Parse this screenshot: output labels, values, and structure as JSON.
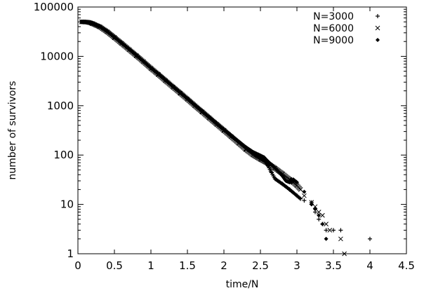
{
  "chart_data": {
    "type": "scatter",
    "title": "",
    "xlabel": "time/N",
    "ylabel": "number of survivors",
    "xlim": [
      0,
      4.5
    ],
    "ylim": [
      1,
      100000
    ],
    "y_scale": "log",
    "grid": false,
    "legend_position": "top-right",
    "x_ticks": [
      0,
      0.5,
      1,
      1.5,
      2,
      2.5,
      3,
      3.5,
      4,
      4.5
    ],
    "x_tick_labels": [
      "0",
      "0.5",
      "1",
      "1.5",
      "2",
      "2.5",
      "3",
      "3.5",
      "4",
      "4.5"
    ],
    "y_ticks": [
      1,
      10,
      100,
      1000,
      10000,
      100000
    ],
    "y_tick_labels": [
      "1",
      "10",
      "100",
      "1000",
      "10000",
      "100000"
    ],
    "series": [
      {
        "name": "N=3000",
        "marker": "plus",
        "points": [
          [
            0.05,
            50000
          ],
          [
            0.1,
            49800
          ],
          [
            0.15,
            49000
          ],
          [
            0.2,
            46500
          ],
          [
            0.3,
            40000
          ],
          [
            0.4,
            32000
          ],
          [
            0.5,
            24500
          ],
          [
            0.6,
            18500
          ],
          [
            0.7,
            14000
          ],
          [
            0.8,
            10500
          ],
          [
            0.9,
            7800
          ],
          [
            1.0,
            5800
          ],
          [
            1.1,
            4400
          ],
          [
            1.2,
            3300
          ],
          [
            1.3,
            2450
          ],
          [
            1.4,
            1850
          ],
          [
            1.5,
            1380
          ],
          [
            1.6,
            1030
          ],
          [
            1.7,
            770
          ],
          [
            1.8,
            580
          ],
          [
            1.9,
            430
          ],
          [
            2.0,
            325
          ],
          [
            2.1,
            245
          ],
          [
            2.2,
            185
          ],
          [
            2.3,
            140
          ],
          [
            2.4,
            110
          ],
          [
            2.5,
            92
          ],
          [
            2.55,
            80
          ],
          [
            2.6,
            62
          ],
          [
            2.65,
            45
          ],
          [
            2.7,
            33
          ],
          [
            2.8,
            26
          ],
          [
            2.9,
            20
          ],
          [
            3.0,
            15
          ],
          [
            3.05,
            13
          ],
          [
            3.1,
            12
          ],
          [
            3.2,
            11
          ],
          [
            3.25,
            7
          ],
          [
            3.3,
            5
          ],
          [
            3.35,
            4
          ],
          [
            3.4,
            3
          ],
          [
            3.5,
            3
          ],
          [
            3.6,
            3
          ],
          [
            4.0,
            2
          ]
        ]
      },
      {
        "name": "N=6000",
        "marker": "cross",
        "points": [
          [
            0.05,
            50000
          ],
          [
            0.1,
            49700
          ],
          [
            0.15,
            48800
          ],
          [
            0.2,
            46000
          ],
          [
            0.3,
            39500
          ],
          [
            0.4,
            31500
          ],
          [
            0.5,
            24000
          ],
          [
            0.6,
            18200
          ],
          [
            0.7,
            13700
          ],
          [
            0.8,
            10300
          ],
          [
            0.9,
            7700
          ],
          [
            1.0,
            5700
          ],
          [
            1.1,
            4300
          ],
          [
            1.2,
            3200
          ],
          [
            1.3,
            2400
          ],
          [
            1.4,
            1800
          ],
          [
            1.5,
            1350
          ],
          [
            1.6,
            1000
          ],
          [
            1.7,
            750
          ],
          [
            1.8,
            560
          ],
          [
            1.9,
            420
          ],
          [
            2.0,
            315
          ],
          [
            2.1,
            235
          ],
          [
            2.2,
            175
          ],
          [
            2.3,
            130
          ],
          [
            2.4,
            100
          ],
          [
            2.5,
            82
          ],
          [
            2.6,
            68
          ],
          [
            2.7,
            54
          ],
          [
            2.8,
            42
          ],
          [
            2.9,
            32
          ],
          [
            2.95,
            28
          ],
          [
            3.0,
            24
          ],
          [
            3.05,
            20
          ],
          [
            3.1,
            15
          ],
          [
            3.2,
            11
          ],
          [
            3.25,
            9
          ],
          [
            3.3,
            7
          ],
          [
            3.35,
            6
          ],
          [
            3.4,
            4
          ],
          [
            3.45,
            3
          ],
          [
            3.6,
            2
          ],
          [
            3.65,
            1
          ]
        ]
      },
      {
        "name": "N=9000",
        "marker": "diamond",
        "points": [
          [
            0.05,
            50000
          ],
          [
            0.1,
            49900
          ],
          [
            0.15,
            49200
          ],
          [
            0.2,
            46800
          ],
          [
            0.3,
            40500
          ],
          [
            0.4,
            32300
          ],
          [
            0.5,
            24700
          ],
          [
            0.6,
            18700
          ],
          [
            0.7,
            14100
          ],
          [
            0.8,
            10600
          ],
          [
            0.9,
            7900
          ],
          [
            1.0,
            5850
          ],
          [
            1.1,
            4450
          ],
          [
            1.2,
            3350
          ],
          [
            1.3,
            2480
          ],
          [
            1.4,
            1870
          ],
          [
            1.5,
            1400
          ],
          [
            1.6,
            1040
          ],
          [
            1.7,
            780
          ],
          [
            1.8,
            590
          ],
          [
            1.9,
            440
          ],
          [
            2.0,
            330
          ],
          [
            2.1,
            250
          ],
          [
            2.2,
            190
          ],
          [
            2.3,
            145
          ],
          [
            2.4,
            115
          ],
          [
            2.5,
            98
          ],
          [
            2.55,
            90
          ],
          [
            2.6,
            75
          ],
          [
            2.7,
            55
          ],
          [
            2.8,
            38
          ],
          [
            2.85,
            30
          ],
          [
            2.9,
            28
          ],
          [
            2.95,
            32
          ],
          [
            3.0,
            28
          ],
          [
            3.1,
            18
          ],
          [
            3.2,
            10
          ],
          [
            3.25,
            8
          ],
          [
            3.3,
            6
          ],
          [
            3.35,
            4
          ],
          [
            3.4,
            2
          ]
        ]
      }
    ]
  }
}
